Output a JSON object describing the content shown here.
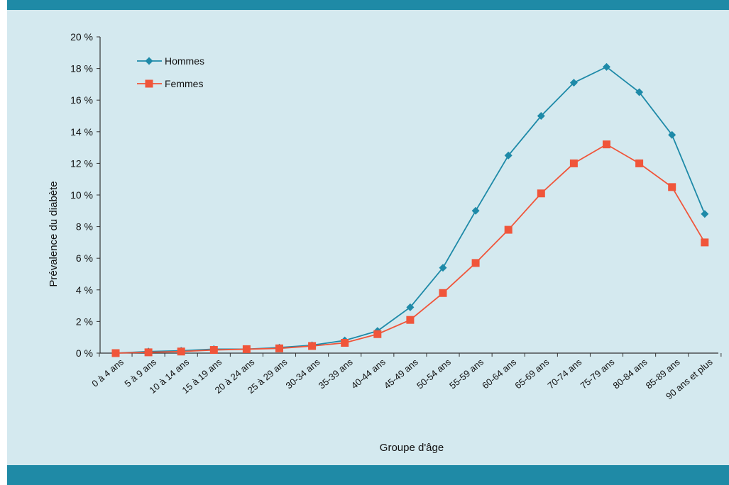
{
  "chart_data": {
    "type": "line",
    "title": "",
    "xlabel": "Groupe d'âge",
    "ylabel": "Prévalence du diabète",
    "ylim": [
      0,
      20
    ],
    "y_ticks": [
      0,
      2,
      4,
      6,
      8,
      10,
      12,
      14,
      16,
      18,
      20
    ],
    "y_tick_labels": [
      "0 %",
      "2 %",
      "4 %",
      "6 %",
      "8 %",
      "10 %",
      "12 %",
      "14 %",
      "16 %",
      "18 %",
      "20 %"
    ],
    "grid": false,
    "legend_position": "top-left",
    "categories": [
      "0 à 4 ans",
      "5 à 9 ans",
      "10 à 14 ans",
      "15 à 19 ans",
      "20 à 24 ans",
      "25 à 29 ans",
      "30-34 ans",
      "35-39 ans",
      "40-44 ans",
      "45-49 ans",
      "50-54 ans",
      "55-59 ans",
      "60-64 ans",
      "65-69 ans",
      "70-74 ans",
      "75-79 ans",
      "80-84 ans",
      "85-89 ans",
      "90 ans et plus"
    ],
    "series": [
      {
        "name": "Hommes",
        "color": "#1e8aa8",
        "marker": "diamond",
        "values": [
          0.0,
          0.1,
          0.15,
          0.25,
          0.25,
          0.35,
          0.5,
          0.8,
          1.4,
          2.9,
          5.4,
          9.0,
          12.5,
          15.0,
          17.1,
          18.1,
          16.5,
          13.8,
          8.8
        ]
      },
      {
        "name": "Femmes",
        "color": "#f0553a",
        "marker": "square",
        "values": [
          0.0,
          0.05,
          0.1,
          0.2,
          0.25,
          0.3,
          0.45,
          0.65,
          1.2,
          2.1,
          3.8,
          5.7,
          7.8,
          10.1,
          12.0,
          13.2,
          12.0,
          10.5,
          7.0
        ]
      }
    ]
  }
}
